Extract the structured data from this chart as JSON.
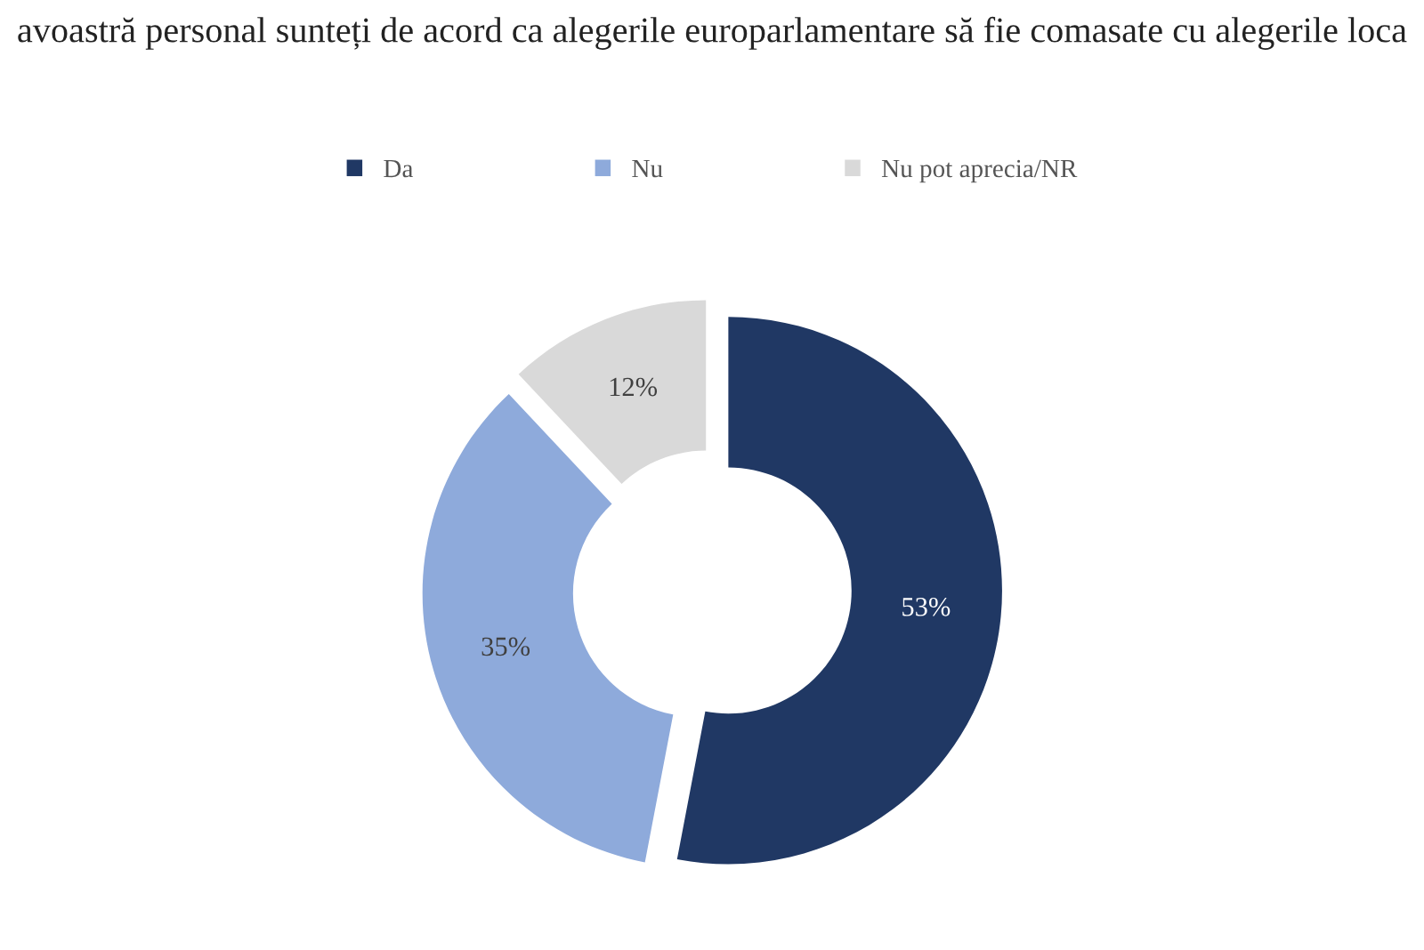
{
  "chart_data": {
    "type": "donut",
    "title": "avoastră personal sunteți de acord ca alegerile europarlamentare să fie comasate cu alegerile loca",
    "categories": [
      "Da",
      "Nu",
      "Nu pot aprecia/NR"
    ],
    "values": [
      53,
      35,
      12
    ],
    "colors": [
      "#203864",
      "#8eaadb",
      "#d9d9d9"
    ],
    "value_labels": [
      "53%",
      "35%",
      "12%"
    ],
    "legend": "top"
  }
}
